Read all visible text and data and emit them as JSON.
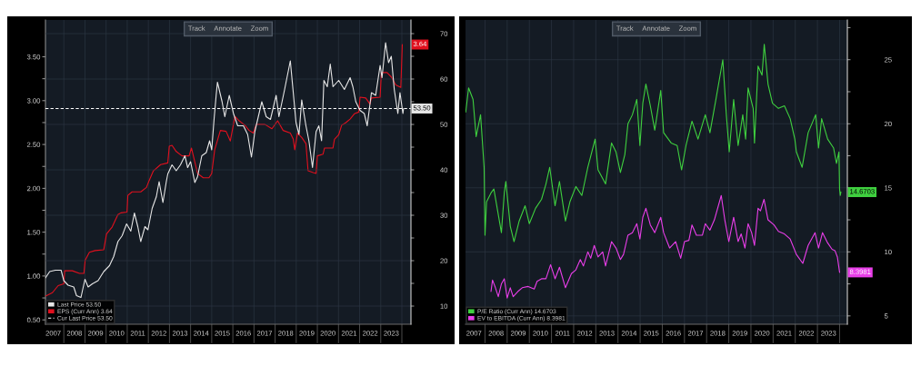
{
  "chart_data": [
    {
      "type": "line",
      "xlim": [
        2007.13,
        2024.43
      ],
      "xticks": [
        {
          "value": 2007.5,
          "label": "2007"
        },
        {
          "value": 2008,
          "label": null
        },
        {
          "value": 2008.5,
          "label": "2008"
        },
        {
          "value": 2009,
          "label": null
        },
        {
          "value": 2009.5,
          "label": "2009"
        },
        {
          "value": 2010,
          "label": null
        },
        {
          "value": 2010.5,
          "label": "2010"
        },
        {
          "value": 2011,
          "label": null
        },
        {
          "value": 2011.5,
          "label": "2011"
        },
        {
          "value": 2012,
          "label": null
        },
        {
          "value": 2012.5,
          "label": "2012"
        },
        {
          "value": 2013,
          "label": null
        },
        {
          "value": 2013.5,
          "label": "2013"
        },
        {
          "value": 2014,
          "label": null
        },
        {
          "value": 2014.5,
          "label": "2014"
        },
        {
          "value": 2015,
          "label": null
        },
        {
          "value": 2015.5,
          "label": "2015"
        },
        {
          "value": 2016,
          "label": null
        },
        {
          "value": 2016.5,
          "label": "2016"
        },
        {
          "value": 2017,
          "label": null
        },
        {
          "value": 2017.5,
          "label": "2017"
        },
        {
          "value": 2018,
          "label": null
        },
        {
          "value": 2018.5,
          "label": "2018"
        },
        {
          "value": 2019,
          "label": null
        },
        {
          "value": 2019.5,
          "label": "2019"
        },
        {
          "value": 2020,
          "label": null
        },
        {
          "value": 2020.5,
          "label": "2020"
        },
        {
          "value": 2021,
          "label": null
        },
        {
          "value": 2021.5,
          "label": "2021"
        },
        {
          "value": 2022,
          "label": null
        },
        {
          "value": 2022.5,
          "label": "2022"
        },
        {
          "value": 2023,
          "label": null
        },
        {
          "value": 2023.5,
          "label": "2023"
        },
        {
          "value": 2024,
          "label": null
        }
      ],
      "ylim": [
        0.45,
        3.92
      ],
      "yticks": [
        {
          "value": 0.5,
          "label": "0.50"
        },
        {
          "value": 0.75,
          "label": null
        },
        {
          "value": 1,
          "label": "1.00"
        },
        {
          "value": 1.25,
          "label": null
        },
        {
          "value": 1.5,
          "label": "1.50"
        },
        {
          "value": 1.75,
          "label": null
        },
        {
          "value": 2,
          "label": "2.00"
        },
        {
          "value": 2.25,
          "label": null
        },
        {
          "value": 2.5,
          "label": "2.50"
        },
        {
          "value": 2.75,
          "label": null
        },
        {
          "value": 3,
          "label": "3.00"
        },
        {
          "value": 3.25,
          "label": null
        },
        {
          "value": 3.5,
          "label": "3.50"
        }
      ],
      "y2lim": [
        6.0,
        73.0
      ],
      "y2ticks": [
        10,
        {
          "value": 15,
          "label": null
        },
        20,
        {
          "value": 25,
          "label": null
        },
        30,
        {
          "value": 35,
          "label": null
        },
        40,
        {
          "value": 45,
          "label": null
        },
        50,
        {
          "value": 55,
          "label": null
        },
        60,
        {
          "value": 65,
          "label": null
        },
        70
      ],
      "series": [
        {
          "name": "Last Price 53.50",
          "color": "#e6e6e6",
          "axis": "y2",
          "x": [
            2007.13,
            2007.33,
            2007.6,
            2007.87,
            2008.0,
            2008.2,
            2008.47,
            2008.6,
            2008.81,
            2009.0,
            2009.15,
            2009.35,
            2009.62,
            2009.89,
            2010.16,
            2010.36,
            2010.56,
            2010.76,
            2010.97,
            2011.17,
            2011.34,
            2011.5,
            2011.64,
            2011.84,
            2011.98,
            2012.18,
            2012.38,
            2012.51,
            2012.69,
            2012.85,
            2012.92,
            2013.12,
            2013.32,
            2013.52,
            2013.73,
            2013.86,
            2014.0,
            2014.2,
            2014.33,
            2014.53,
            2014.74,
            2014.9,
            2015.0,
            2015.11,
            2015.21,
            2015.27,
            2015.49,
            2015.62,
            2015.83,
            2016.03,
            2016.23,
            2016.5,
            2016.7,
            2016.88,
            2017.04,
            2017.37,
            2017.58,
            2017.78,
            2018.05,
            2018.18,
            2018.45,
            2018.72,
            2018.86,
            2018.99,
            2019.13,
            2019.26,
            2019.46,
            2019.6,
            2019.77,
            2019.94,
            2020.07,
            2020.2,
            2020.31,
            2020.47,
            2020.61,
            2020.74,
            2021.01,
            2021.28,
            2021.55,
            2021.68,
            2021.82,
            2022.02,
            2022.22,
            2022.36,
            2022.56,
            2022.76,
            2022.97,
            2023.06,
            2023.23,
            2023.37,
            2023.5,
            2023.64,
            2023.81,
            2023.91,
            2024.05,
            2024.08
          ],
          "values": [
            16.2,
            17.6,
            17.9,
            17.9,
            15.6,
            14.6,
            14.2,
            12.3,
            11.9,
            15.9,
            14.2,
            14.9,
            15.6,
            17.6,
            18.9,
            20.9,
            24.2,
            25.5,
            28.1,
            26.5,
            30.5,
            27.5,
            24.2,
            27.5,
            26.8,
            31.5,
            34.1,
            37.4,
            32.8,
            37.4,
            39.1,
            41.1,
            39.8,
            41.1,
            43.1,
            40.5,
            41.8,
            37.2,
            38.5,
            43.1,
            43.8,
            46.4,
            44.4,
            51.1,
            56.4,
            59.3,
            55.0,
            51.7,
            56.4,
            52.4,
            49.7,
            49.7,
            47.8,
            42.8,
            48.4,
            55.0,
            51.7,
            51.1,
            56.4,
            51.7,
            57.7,
            64.0,
            57.0,
            50.4,
            47.8,
            55.4,
            49.7,
            46.4,
            40.5,
            48.4,
            49.7,
            46.4,
            59.7,
            58.3,
            63.3,
            58.3,
            59.7,
            57.7,
            60.3,
            58.3,
            55.0,
            53.1,
            52.4,
            49.7,
            57.0,
            56.4,
            63.0,
            60.3,
            68.0,
            63.6,
            65.0,
            57.7,
            52.4,
            57.0,
            52.4,
            53.5
          ],
          "value_labels": [
            null,
            null,
            null,
            null,
            null,
            null,
            null,
            null,
            null,
            null,
            null,
            null,
            null,
            null,
            null,
            null,
            null,
            null,
            null,
            null,
            null,
            null,
            null,
            null,
            null,
            null,
            null,
            null,
            null,
            null,
            null,
            null,
            null,
            null,
            null,
            null,
            null,
            null,
            null,
            null,
            null,
            null,
            null,
            null,
            null,
            null,
            null,
            null,
            null,
            null,
            null,
            null,
            null,
            null,
            null,
            null,
            null,
            null,
            null,
            null,
            null,
            null,
            null,
            null,
            null,
            null,
            null,
            null,
            null,
            null,
            null,
            null,
            null,
            null,
            null,
            null,
            null,
            null,
            null,
            null,
            null,
            null,
            null,
            null,
            null,
            null,
            null,
            null,
            null,
            null,
            null,
            null,
            null,
            null,
            null,
            "53.50"
          ]
        },
        {
          "name": "EPS (Curr Ann) 3.64",
          "color": "#e0101e",
          "x": [
            2007.13,
            2007.46,
            2007.73,
            2008.0,
            2008.04,
            2008.4,
            2008.74,
            2008.95,
            2009.01,
            2009.21,
            2009.48,
            2009.89,
            2010.02,
            2010.29,
            2010.56,
            2010.7,
            2010.99,
            2011.03,
            2011.23,
            2011.64,
            2011.91,
            2012.04,
            2012.24,
            2012.58,
            2012.92,
            2012.99,
            2013.12,
            2013.32,
            2013.59,
            2013.93,
            2014.04,
            2014.2,
            2014.33,
            2014.6,
            2014.87,
            2015.0,
            2015.14,
            2015.41,
            2015.68,
            2015.88,
            2016.1,
            2016.3,
            2016.57,
            2016.77,
            2016.97,
            2017.11,
            2017.51,
            2017.85,
            2018.12,
            2018.38,
            2018.72,
            2018.86,
            2018.93,
            2019.06,
            2019.26,
            2019.46,
            2019.56,
            2019.8,
            2019.94,
            2020.0,
            2020.27,
            2020.34,
            2020.74,
            2020.81,
            2021.01,
            2021.15,
            2021.35,
            2021.55,
            2021.75,
            2021.96,
            2022.02,
            2022.29,
            2022.49,
            2022.56,
            2022.97,
            2023.03,
            2023.3,
            2023.5,
            2023.71,
            2023.95,
            2024.02
          ],
          "values": [
            0.77,
            0.81,
            0.89,
            0.91,
            1.06,
            1.06,
            1.03,
            1.03,
            1.18,
            1.27,
            1.29,
            1.3,
            1.48,
            1.56,
            1.7,
            1.72,
            1.73,
            1.92,
            1.96,
            1.96,
            2.01,
            2.09,
            2.2,
            2.27,
            2.29,
            2.48,
            2.49,
            2.42,
            2.37,
            2.37,
            2.46,
            2.3,
            2.17,
            2.12,
            2.12,
            2.17,
            2.44,
            2.66,
            2.65,
            2.54,
            2.82,
            2.77,
            2.72,
            2.66,
            2.63,
            2.73,
            2.73,
            2.68,
            2.77,
            2.66,
            2.63,
            2.56,
            2.44,
            2.63,
            2.58,
            2.51,
            2.2,
            2.18,
            2.17,
            2.37,
            2.39,
            2.46,
            2.46,
            2.56,
            2.61,
            2.72,
            2.75,
            2.79,
            2.85,
            2.87,
            3.04,
            3.03,
            2.96,
            3.03,
            3.04,
            3.32,
            3.32,
            3.27,
            3.18,
            3.15,
            3.64
          ],
          "value_labels": [
            null,
            null,
            null,
            null,
            null,
            null,
            null,
            null,
            null,
            null,
            null,
            null,
            null,
            null,
            null,
            null,
            null,
            null,
            null,
            null,
            null,
            null,
            null,
            null,
            null,
            null,
            null,
            null,
            null,
            null,
            null,
            null,
            null,
            null,
            null,
            null,
            null,
            null,
            null,
            null,
            null,
            null,
            null,
            null,
            null,
            null,
            null,
            null,
            null,
            null,
            null,
            null,
            null,
            null,
            null,
            null,
            null,
            null,
            null,
            null,
            null,
            null,
            null,
            null,
            null,
            null,
            null,
            null,
            null,
            null,
            null,
            null,
            null,
            null,
            null,
            null,
            null,
            null,
            null,
            null,
            "3.64"
          ]
        }
      ],
      "ref_lines": [
        {
          "axis": "y2",
          "value": 53.5,
          "label": "Cur Last Price 53.50",
          "color": "#ffffff",
          "line_style": "dashed"
        }
      ],
      "annotations": [
        "Track",
        "Annotate",
        "Zoom"
      ],
      "grid": true,
      "legend": "bottom left"
    },
    {
      "type": "line",
      "xlim": [
        2007.12,
        2024.35
      ],
      "xticks": [
        {
          "value": 2007.5,
          "label": "2007"
        },
        {
          "value": 2008,
          "label": null
        },
        {
          "value": 2008.5,
          "label": "2008"
        },
        {
          "value": 2009,
          "label": null
        },
        {
          "value": 2009.5,
          "label": "2009"
        },
        {
          "value": 2010,
          "label": null
        },
        {
          "value": 2010.5,
          "label": "2010"
        },
        {
          "value": 2011,
          "label": null
        },
        {
          "value": 2011.5,
          "label": "2011"
        },
        {
          "value": 2012,
          "label": null
        },
        {
          "value": 2012.5,
          "label": "2012"
        },
        {
          "value": 2013,
          "label": null
        },
        {
          "value": 2013.5,
          "label": "2013"
        },
        {
          "value": 2014,
          "label": null
        },
        {
          "value": 2014.5,
          "label": "2014"
        },
        {
          "value": 2015,
          "label": null
        },
        {
          "value": 2015.5,
          "label": "2015"
        },
        {
          "value": 2016,
          "label": null
        },
        {
          "value": 2016.5,
          "label": "2016"
        },
        {
          "value": 2017,
          "label": null
        },
        {
          "value": 2017.5,
          "label": "2017"
        },
        {
          "value": 2018,
          "label": null
        },
        {
          "value": 2018.5,
          "label": "2018"
        },
        {
          "value": 2019,
          "label": null
        },
        {
          "value": 2019.5,
          "label": "2019"
        },
        {
          "value": 2020,
          "label": null
        },
        {
          "value": 2020.5,
          "label": "2020"
        },
        {
          "value": 2021,
          "label": null
        },
        {
          "value": 2021.5,
          "label": "2021"
        },
        {
          "value": 2022,
          "label": null
        },
        {
          "value": 2022.5,
          "label": "2022"
        },
        {
          "value": 2023,
          "label": null
        },
        {
          "value": 2023.5,
          "label": "2023"
        },
        {
          "value": 2024,
          "label": null
        }
      ],
      "y2lim": [
        4.35,
        28.1
      ],
      "y2ticks": [
        5,
        {
          "value": 7.5,
          "label": null
        },
        10,
        {
          "value": 12.5,
          "label": null
        },
        15,
        {
          "value": 17.5,
          "label": null
        },
        20,
        {
          "value": 22.5,
          "label": null
        },
        25,
        {
          "value": 27.5,
          "label": null
        }
      ],
      "series": [
        {
          "name": "P/E Ratio (Curr Ann) 14.6703",
          "color": "#3fcf3f",
          "axis": "y2",
          "x": [
            2007.13,
            2007.26,
            2007.46,
            2007.6,
            2007.8,
            2007.96,
            2008.0,
            2008.07,
            2008.27,
            2008.4,
            2008.6,
            2008.74,
            2008.87,
            2008.94,
            2009.14,
            2009.31,
            2009.54,
            2009.81,
            2010.0,
            2010.28,
            2010.55,
            2010.75,
            2010.92,
            2011.16,
            2011.36,
            2011.63,
            2011.83,
            2012.1,
            2012.37,
            2012.64,
            2012.97,
            2013.1,
            2013.44,
            2013.71,
            2013.91,
            2014.11,
            2014.31,
            2014.45,
            2014.65,
            2014.85,
            2014.99,
            2015.12,
            2015.26,
            2015.46,
            2015.66,
            2015.93,
            2016.06,
            2016.4,
            2016.67,
            2016.87,
            2017.07,
            2017.34,
            2017.61,
            2017.94,
            2018.15,
            2018.42,
            2018.73,
            2018.89,
            2019.02,
            2019.22,
            2019.42,
            2019.63,
            2019.76,
            2019.87,
            2020.1,
            2020.16,
            2020.32,
            2020.5,
            2020.6,
            2020.77,
            2020.97,
            2021.24,
            2021.51,
            2021.77,
            2021.98,
            2022.05,
            2022.31,
            2022.58,
            2022.92,
            2023.05,
            2023.19,
            2023.46,
            2023.73,
            2023.86,
            2023.97,
            2024.0,
            2024.03,
            2024.06
          ],
          "values": [
            20.9,
            22.8,
            21.9,
            19.0,
            20.7,
            16.6,
            11.3,
            13.9,
            14.6,
            14.9,
            12.9,
            11.5,
            14.6,
            15.5,
            12.0,
            10.8,
            12.4,
            13.6,
            12.2,
            13.4,
            14.1,
            15.3,
            16.6,
            13.6,
            15.5,
            12.4,
            13.9,
            15.1,
            14.4,
            16.6,
            18.8,
            16.4,
            15.3,
            18.5,
            17.8,
            16.2,
            17.6,
            20.0,
            20.7,
            21.9,
            18.3,
            21.6,
            23.1,
            21.4,
            19.5,
            22.6,
            19.3,
            18.5,
            18.3,
            16.4,
            18.3,
            20.2,
            18.8,
            20.7,
            19.3,
            21.9,
            25.0,
            20.7,
            17.8,
            21.9,
            18.3,
            20.7,
            18.8,
            22.8,
            21.2,
            18.5,
            24.5,
            23.8,
            26.2,
            23.1,
            21.6,
            21.2,
            21.4,
            20.4,
            18.8,
            17.8,
            16.6,
            19.3,
            20.7,
            18.1,
            20.4,
            18.8,
            18.1,
            16.9,
            17.8,
            14.9,
            14.4,
            14.6703
          ],
          "value_labels": [
            null,
            null,
            null,
            null,
            null,
            null,
            null,
            null,
            null,
            null,
            null,
            null,
            null,
            null,
            null,
            null,
            null,
            null,
            null,
            null,
            null,
            null,
            null,
            null,
            null,
            null,
            null,
            null,
            null,
            null,
            null,
            null,
            null,
            null,
            null,
            null,
            null,
            null,
            null,
            null,
            null,
            null,
            null,
            null,
            null,
            null,
            null,
            null,
            null,
            null,
            null,
            null,
            null,
            null,
            null,
            null,
            null,
            null,
            null,
            null,
            null,
            null,
            null,
            null,
            null,
            null,
            null,
            null,
            null,
            null,
            null,
            null,
            null,
            null,
            null,
            null,
            null,
            null,
            null,
            null,
            null,
            null,
            null,
            null,
            null,
            null,
            null,
            "14.6703"
          ]
        },
        {
          "name": "EV to EBITDA (Curr Ann) 8.3981",
          "color": "#e83ee8",
          "axis": "y2",
          "x": [
            2008.27,
            2008.34,
            2008.47,
            2008.6,
            2008.74,
            2008.87,
            2009.0,
            2009.14,
            2009.27,
            2009.48,
            2009.68,
            2009.95,
            2010.22,
            2010.35,
            2010.55,
            2010.75,
            2010.96,
            2011.16,
            2011.36,
            2011.63,
            2011.9,
            2012.1,
            2012.3,
            2012.44,
            2012.64,
            2012.77,
            2012.93,
            2013.1,
            2013.31,
            2013.44,
            2013.71,
            2013.91,
            2014.11,
            2014.25,
            2014.45,
            2014.65,
            2014.85,
            2014.99,
            2015.12,
            2015.26,
            2015.46,
            2015.66,
            2015.93,
            2016.06,
            2016.33,
            2016.6,
            2016.83,
            2017.0,
            2017.2,
            2017.34,
            2017.54,
            2017.81,
            2017.94,
            2018.15,
            2018.35,
            2018.66,
            2018.82,
            2019.0,
            2019.22,
            2019.42,
            2019.56,
            2019.73,
            2019.87,
            2020.03,
            2020.16,
            2020.32,
            2020.43,
            2020.59,
            2020.77,
            2021.04,
            2021.24,
            2021.51,
            2021.77,
            2022.05,
            2022.34,
            2022.58,
            2022.89,
            2023.05,
            2023.23,
            2023.46,
            2023.66,
            2023.79,
            2023.9,
            2024.0
          ],
          "values": [
            6.9,
            7.8,
            7.2,
            6.5,
            7.5,
            7.9,
            6.4,
            7.2,
            6.5,
            6.9,
            7.2,
            7.3,
            7.1,
            7.7,
            7.9,
            7.9,
            9.0,
            7.9,
            8.8,
            7.2,
            8.3,
            8.6,
            9.4,
            8.9,
            10.0,
            9.5,
            10.5,
            9.6,
            10.0,
            8.9,
            10.8,
            10.3,
            9.4,
            9.8,
            11.3,
            11.5,
            12.2,
            11.0,
            12.7,
            13.4,
            12.1,
            11.5,
            12.7,
            11.5,
            10.3,
            10.8,
            9.5,
            10.8,
            10.9,
            12.1,
            11.3,
            11.3,
            12.2,
            11.7,
            12.5,
            14.4,
            12.5,
            10.8,
            12.7,
            10.8,
            11.4,
            10.3,
            12.2,
            11.5,
            10.5,
            13.4,
            13.2,
            14.1,
            12.5,
            12.1,
            11.6,
            11.4,
            11.0,
            9.8,
            9.1,
            10.5,
            11.5,
            10.3,
            11.5,
            10.7,
            10.2,
            10.1,
            9.6,
            8.3981
          ],
          "value_labels": [
            null,
            null,
            null,
            null,
            null,
            null,
            null,
            null,
            null,
            null,
            null,
            null,
            null,
            null,
            null,
            null,
            null,
            null,
            null,
            null,
            null,
            null,
            null,
            null,
            null,
            null,
            null,
            null,
            null,
            null,
            null,
            null,
            null,
            null,
            null,
            null,
            null,
            null,
            null,
            null,
            null,
            null,
            null,
            null,
            null,
            null,
            null,
            null,
            null,
            null,
            null,
            null,
            null,
            null,
            null,
            null,
            null,
            null,
            null,
            null,
            null,
            null,
            null,
            null,
            null,
            null,
            null,
            null,
            null,
            null,
            null,
            null,
            null,
            null,
            null,
            null,
            null,
            null,
            null,
            null,
            null,
            null,
            null,
            "8.3981"
          ]
        }
      ],
      "annotations": [
        "Track",
        "Annotate",
        "Zoom"
      ],
      "grid": true,
      "legend": "bottom left"
    }
  ]
}
